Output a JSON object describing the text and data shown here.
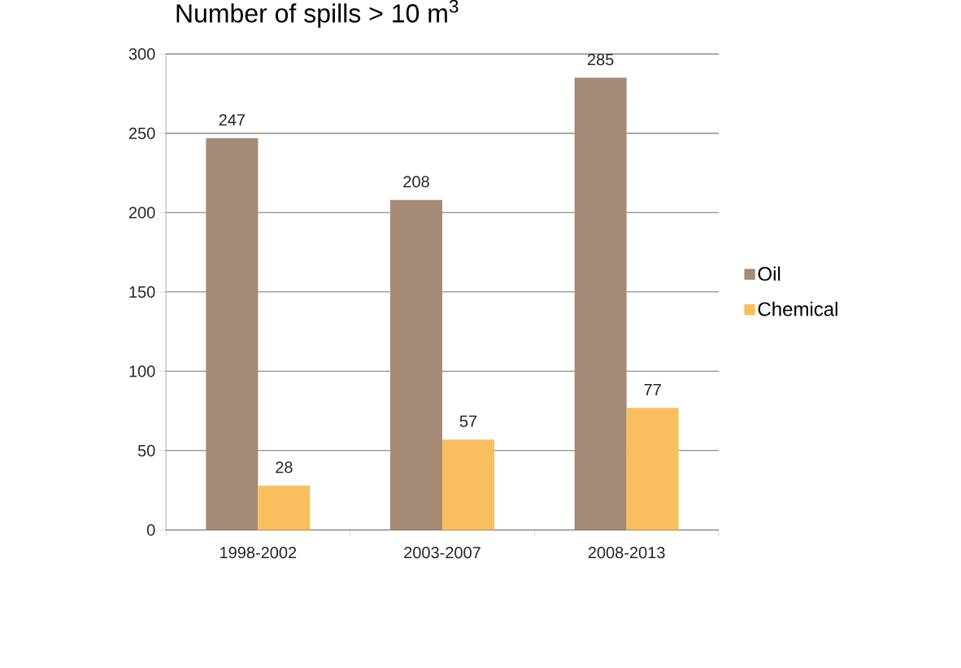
{
  "chart_data": {
    "type": "bar",
    "title": "Number of spills > 10 m$^{3}$",
    "categories": [
      "1998-2002",
      "2003-2007",
      "2008-2013"
    ],
    "series": [
      {
        "name": "Oil",
        "color": "#a58a76",
        "values": [
          247,
          208,
          285
        ]
      },
      {
        "name": "Chemical",
        "color": "#f9bf5f",
        "values": [
          28,
          57,
          77
        ]
      }
    ],
    "ylim": [
      0,
      300
    ],
    "yticks": [
      0,
      50,
      100,
      150,
      200,
      250,
      300
    ],
    "grid": "y",
    "legend": "right",
    "data_labels": true
  }
}
